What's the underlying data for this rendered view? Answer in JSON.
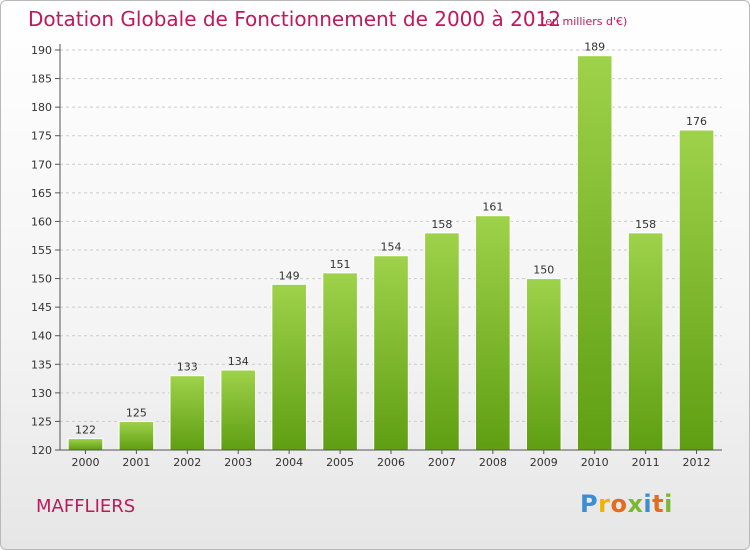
{
  "title": "Dotation Globale de Fonctionnement de 2000 à 2012",
  "subtitle": "(en milliers d'€)",
  "commune": "MAFFLIERS",
  "logo": {
    "letters": [
      {
        "ch": "P",
        "color": "#3a8ed6"
      },
      {
        "ch": "r",
        "color": "#f0b400"
      },
      {
        "ch": "o",
        "color": "#e86a1c"
      },
      {
        "ch": "x",
        "color": "#7cb82e"
      },
      {
        "ch": "i",
        "color": "#3a8ed6"
      },
      {
        "ch": "t",
        "color": "#e86a1c"
      },
      {
        "ch": "i",
        "color": "#7cb82e"
      }
    ]
  },
  "colors": {
    "accent": "#c0185a",
    "bar_light": "#9ed24a",
    "bar_dark": "#5f9e12",
    "axis": "#555555",
    "grid": "#cccccc"
  },
  "chart_data": {
    "type": "bar",
    "categories": [
      "2000",
      "2001",
      "2002",
      "2003",
      "2004",
      "2005",
      "2006",
      "2007",
      "2008",
      "2009",
      "2010",
      "2011",
      "2012"
    ],
    "values": [
      122,
      125,
      133,
      134,
      149,
      151,
      154,
      158,
      161,
      150,
      189,
      158,
      176
    ],
    "ylim": [
      120,
      190
    ],
    "yticks": [
      120,
      125,
      130,
      135,
      140,
      145,
      150,
      155,
      160,
      165,
      170,
      175,
      180,
      185,
      190
    ],
    "grid": true,
    "legend": "none"
  }
}
